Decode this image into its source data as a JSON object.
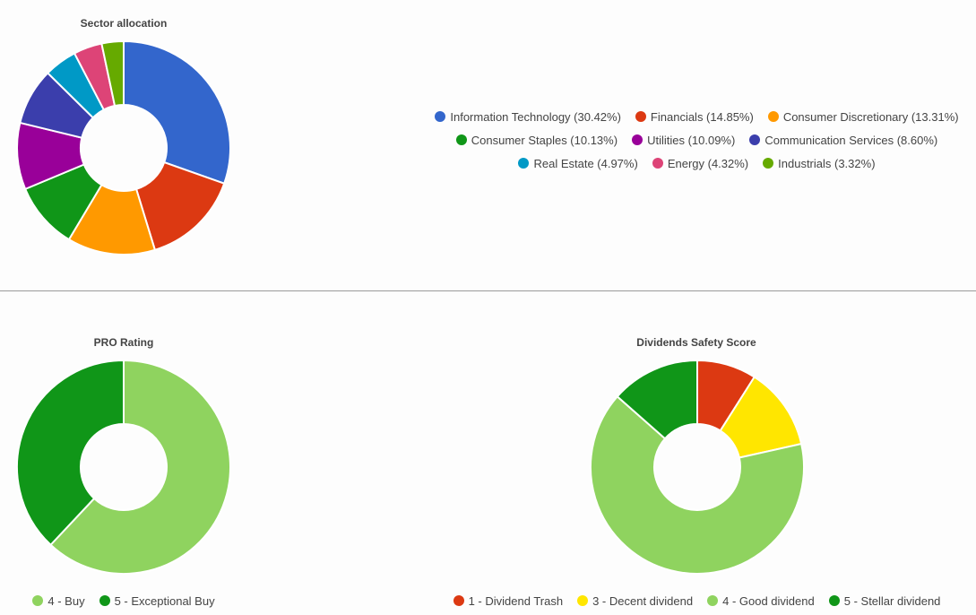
{
  "chart_data": [
    {
      "type": "pie",
      "title": "Sector allocation",
      "categories": [
        "Information Technology",
        "Financials",
        "Consumer Discretionary",
        "Consumer Staples",
        "Utilities",
        "Communication Services",
        "Real Estate",
        "Energy",
        "Industrials"
      ],
      "values": [
        30.42,
        14.85,
        13.31,
        10.13,
        10.09,
        8.6,
        4.97,
        4.32,
        3.32
      ],
      "legend_labels": [
        "Information Technology (30.42%)",
        "Financials (14.85%)",
        "Consumer Discretionary (13.31%)",
        "Consumer Staples (10.13%)",
        "Utilities (10.09%)",
        "Communication Services (8.60%)",
        "Real Estate (4.97%)",
        "Energy (4.32%)",
        "Industrials (3.32%)"
      ],
      "colors": [
        "#3366cc",
        "#dc3912",
        "#ff9900",
        "#109618",
        "#990099",
        "#3b3eac",
        "#0099c6",
        "#dd4477",
        "#66aa00"
      ],
      "legend_placement": "right"
    },
    {
      "type": "pie",
      "title": "PRO Rating",
      "categories": [
        "4 - Buy",
        "5 - Exceptional Buy"
      ],
      "values": [
        62,
        38
      ],
      "colors": [
        "#8fd35f",
        "#109618"
      ],
      "legend_placement": "bottom"
    },
    {
      "type": "pie",
      "title": "Dividends Safety Score",
      "categories": [
        "1 - Dividend Trash",
        "3 - Decent dividend",
        "4 - Good dividend",
        "5 - Stellar dividend"
      ],
      "values": [
        9,
        12.5,
        65,
        13.5
      ],
      "colors": [
        "#dc3912",
        "#ffe600",
        "#8fd35f",
        "#109618"
      ],
      "legend_placement": "bottom"
    }
  ]
}
